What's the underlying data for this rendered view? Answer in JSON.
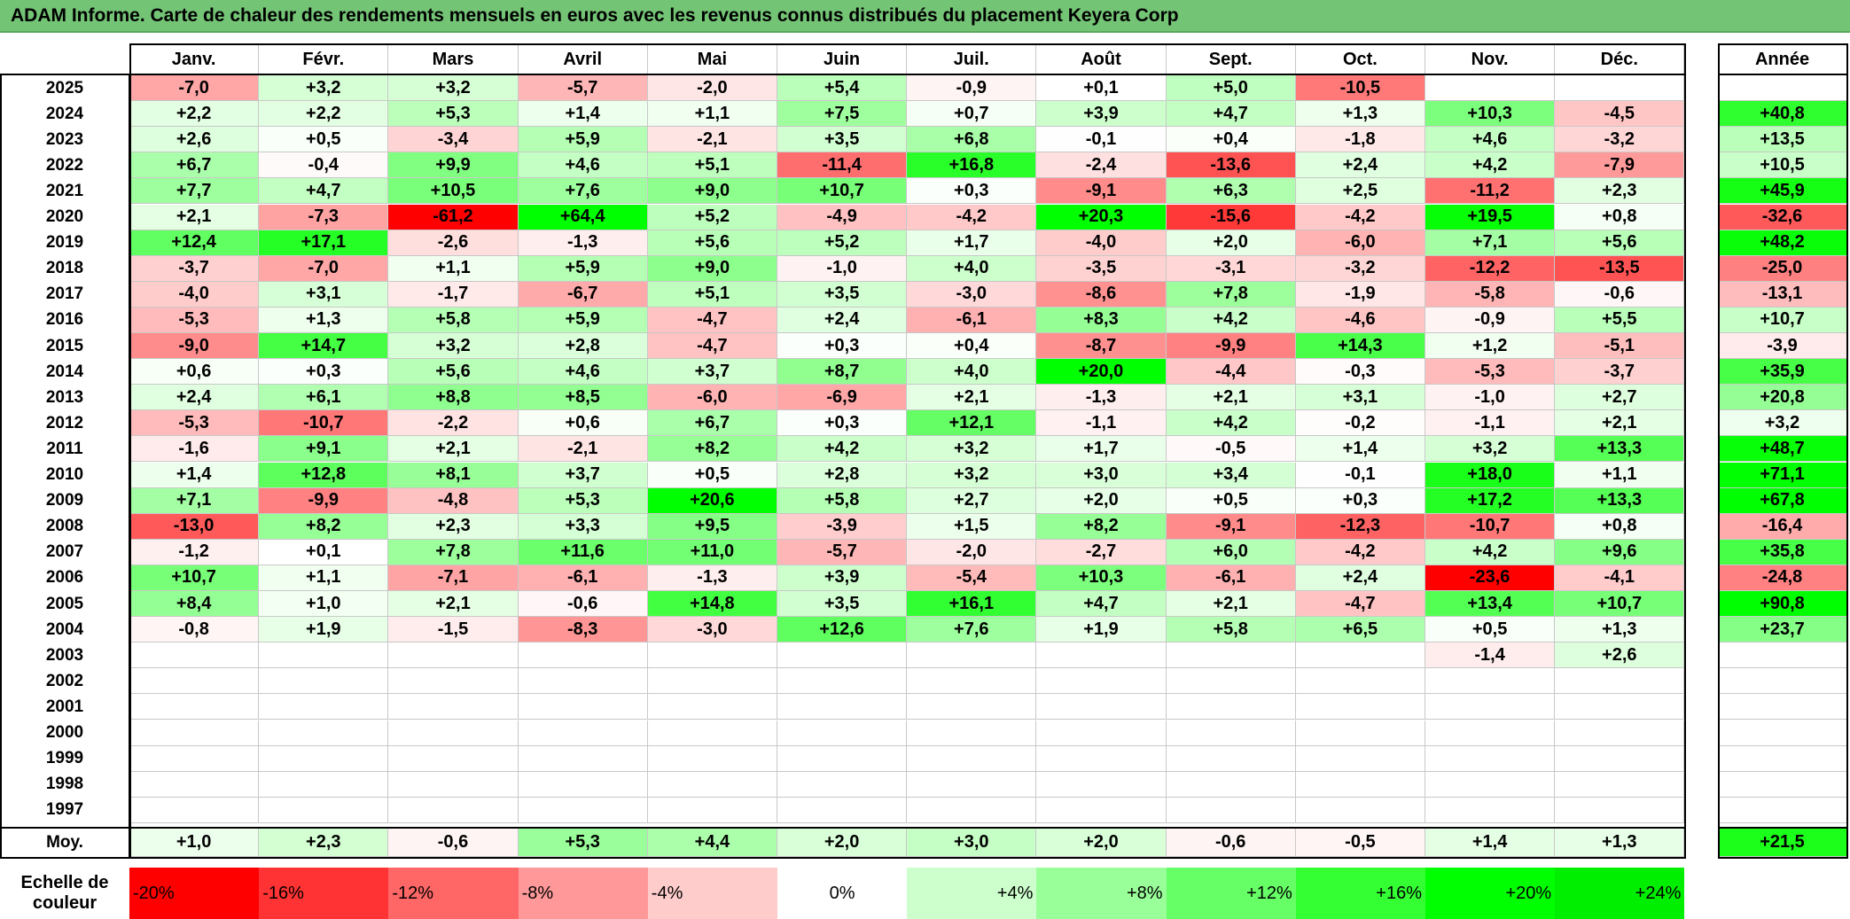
{
  "title": "ADAM Informe. Carte de chaleur des rendements mensuels en euros avec les revenus connus distribués du placement Keyera Corp",
  "chart_data": {
    "type": "heatmap",
    "title": "ADAM Informe. Carte de chaleur des rendements mensuels en euros avec les revenus connus distribués du placement Keyera Corp",
    "months": [
      "Janv.",
      "Févr.",
      "Mars",
      "Avril",
      "Mai",
      "Juin",
      "Juil.",
      "Août",
      "Sept.",
      "Oct.",
      "Nov.",
      "Déc."
    ],
    "year_header": "Année",
    "rows": [
      {
        "year": "2025",
        "values": [
          "-7,0",
          "+3,2",
          "+3,2",
          "-5,7",
          "-2,0",
          "+5,4",
          "-0,9",
          "+0,1",
          "+5,0",
          "-10,5",
          "",
          ""
        ],
        "annual": ""
      },
      {
        "year": "2024",
        "values": [
          "+2,2",
          "+2,2",
          "+5,3",
          "+1,4",
          "+1,1",
          "+7,5",
          "+0,7",
          "+3,9",
          "+4,7",
          "+1,3",
          "+10,3",
          "-4,5"
        ],
        "annual": "+40,8"
      },
      {
        "year": "2023",
        "values": [
          "+2,6",
          "+0,5",
          "-3,4",
          "+5,9",
          "-2,1",
          "+3,5",
          "+6,8",
          "-0,1",
          "+0,4",
          "-1,8",
          "+4,6",
          "-3,2"
        ],
        "annual": "+13,5"
      },
      {
        "year": "2022",
        "values": [
          "+6,7",
          "-0,4",
          "+9,9",
          "+4,6",
          "+5,1",
          "-11,4",
          "+16,8",
          "-2,4",
          "-13,6",
          "+2,4",
          "+4,2",
          "-7,9"
        ],
        "annual": "+10,5"
      },
      {
        "year": "2021",
        "values": [
          "+7,7",
          "+4,7",
          "+10,5",
          "+7,6",
          "+9,0",
          "+10,7",
          "+0,3",
          "-9,1",
          "+6,3",
          "+2,5",
          "-11,2",
          "+2,3"
        ],
        "annual": "+45,9"
      },
      {
        "year": "2020",
        "values": [
          "+2,1",
          "-7,3",
          "-61,2",
          "+64,4",
          "+5,2",
          "-4,9",
          "-4,2",
          "+20,3",
          "-15,6",
          "-4,2",
          "+19,5",
          "+0,8"
        ],
        "annual": "-32,6"
      },
      {
        "year": "2019",
        "values": [
          "+12,4",
          "+17,1",
          "-2,6",
          "-1,3",
          "+5,6",
          "+5,2",
          "+1,7",
          "-4,0",
          "+2,0",
          "-6,0",
          "+7,1",
          "+5,6"
        ],
        "annual": "+48,2"
      },
      {
        "year": "2018",
        "values": [
          "-3,7",
          "-7,0",
          "+1,1",
          "+5,9",
          "+9,0",
          "-1,0",
          "+4,0",
          "-3,5",
          "-3,1",
          "-3,2",
          "-12,2",
          "-13,5"
        ],
        "annual": "-25,0"
      },
      {
        "year": "2017",
        "values": [
          "-4,0",
          "+3,1",
          "-1,7",
          "-6,7",
          "+5,1",
          "+3,5",
          "-3,0",
          "-8,6",
          "+7,8",
          "-1,9",
          "-5,8",
          "-0,6"
        ],
        "annual": "-13,1"
      },
      {
        "year": "2016",
        "values": [
          "-5,3",
          "+1,3",
          "+5,8",
          "+5,9",
          "-4,7",
          "+2,4",
          "-6,1",
          "+8,3",
          "+4,2",
          "-4,6",
          "-0,9",
          "+5,5"
        ],
        "annual": "+10,7"
      },
      {
        "year": "2015",
        "values": [
          "-9,0",
          "+14,7",
          "+3,2",
          "+2,8",
          "-4,7",
          "+0,3",
          "+0,4",
          "-8,7",
          "-9,9",
          "+14,3",
          "+1,2",
          "-5,1"
        ],
        "annual": "-3,9"
      },
      {
        "year": "2014",
        "values": [
          "+0,6",
          "+0,3",
          "+5,6",
          "+4,6",
          "+3,7",
          "+8,7",
          "+4,0",
          "+20,0",
          "-4,4",
          "-0,3",
          "-5,3",
          "-3,7"
        ],
        "annual": "+35,9"
      },
      {
        "year": "2013",
        "values": [
          "+2,4",
          "+6,1",
          "+8,8",
          "+8,5",
          "-6,0",
          "-6,9",
          "+2,1",
          "-1,3",
          "+2,1",
          "+3,1",
          "-1,0",
          "+2,7"
        ],
        "annual": "+20,8"
      },
      {
        "year": "2012",
        "values": [
          "-5,3",
          "-10,7",
          "-2,2",
          "+0,6",
          "+6,7",
          "+0,3",
          "+12,1",
          "-1,1",
          "+4,2",
          "-0,2",
          "-1,1",
          "+2,1"
        ],
        "annual": "+3,2"
      },
      {
        "year": "2011",
        "values": [
          "-1,6",
          "+9,1",
          "+2,1",
          "-2,1",
          "+8,2",
          "+4,2",
          "+3,2",
          "+1,7",
          "-0,5",
          "+1,4",
          "+3,2",
          "+13,3"
        ],
        "annual": "+48,7"
      },
      {
        "year": "2010",
        "values": [
          "+1,4",
          "+12,8",
          "+8,1",
          "+3,7",
          "+0,5",
          "+2,8",
          "+3,2",
          "+3,0",
          "+3,4",
          "-0,1",
          "+18,0",
          "+1,1"
        ],
        "annual": "+71,1"
      },
      {
        "year": "2009",
        "values": [
          "+7,1",
          "-9,9",
          "-4,8",
          "+5,3",
          "+20,6",
          "+5,8",
          "+2,7",
          "+2,0",
          "+0,5",
          "+0,3",
          "+17,2",
          "+13,3"
        ],
        "annual": "+67,8"
      },
      {
        "year": "2008",
        "values": [
          "-13,0",
          "+8,2",
          "+2,3",
          "+3,3",
          "+9,5",
          "-3,9",
          "+1,5",
          "+8,2",
          "-9,1",
          "-12,3",
          "-10,7",
          "+0,8"
        ],
        "annual": "-16,4"
      },
      {
        "year": "2007",
        "values": [
          "-1,2",
          "+0,1",
          "+7,8",
          "+11,6",
          "+11,0",
          "-5,7",
          "-2,0",
          "-2,7",
          "+6,0",
          "-4,2",
          "+4,2",
          "+9,6"
        ],
        "annual": "+35,8"
      },
      {
        "year": "2006",
        "values": [
          "+10,7",
          "+1,1",
          "-7,1",
          "-6,1",
          "-1,3",
          "+3,9",
          "-5,4",
          "+10,3",
          "-6,1",
          "+2,4",
          "-23,6",
          "-4,1"
        ],
        "annual": "-24,8"
      },
      {
        "year": "2005",
        "values": [
          "+8,4",
          "+1,0",
          "+2,1",
          "-0,6",
          "+14,8",
          "+3,5",
          "+16,1",
          "+4,7",
          "+2,1",
          "-4,7",
          "+13,4",
          "+10,7"
        ],
        "annual": "+90,8"
      },
      {
        "year": "2004",
        "values": [
          "-0,8",
          "+1,9",
          "-1,5",
          "-8,3",
          "-3,0",
          "+12,6",
          "+7,6",
          "+1,9",
          "+5,8",
          "+6,5",
          "+0,5",
          "+1,3"
        ],
        "annual": "+23,7"
      },
      {
        "year": "2003",
        "values": [
          "",
          "",
          "",
          "",
          "",
          "",
          "",
          "",
          "",
          "",
          "-1,4",
          "+2,6"
        ],
        "annual": ""
      },
      {
        "year": "2002",
        "values": [
          "",
          "",
          "",
          "",
          "",
          "",
          "",
          "",
          "",
          "",
          "",
          ""
        ],
        "annual": ""
      },
      {
        "year": "2001",
        "values": [
          "",
          "",
          "",
          "",
          "",
          "",
          "",
          "",
          "",
          "",
          "",
          ""
        ],
        "annual": ""
      },
      {
        "year": "2000",
        "values": [
          "",
          "",
          "",
          "",
          "",
          "",
          "",
          "",
          "",
          "",
          "",
          ""
        ],
        "annual": ""
      },
      {
        "year": "1999",
        "values": [
          "",
          "",
          "",
          "",
          "",
          "",
          "",
          "",
          "",
          "",
          "",
          ""
        ],
        "annual": ""
      },
      {
        "year": "1998",
        "values": [
          "",
          "",
          "",
          "",
          "",
          "",
          "",
          "",
          "",
          "",
          "",
          ""
        ],
        "annual": ""
      },
      {
        "year": "1997",
        "values": [
          "",
          "",
          "",
          "",
          "",
          "",
          "",
          "",
          "",
          "",
          "",
          ""
        ],
        "annual": ""
      }
    ],
    "average": {
      "label": "Moy.",
      "values": [
        "+1,0",
        "+2,3",
        "-0,6",
        "+5,3",
        "+4,4",
        "+2,0",
        "+3,0",
        "+2,0",
        "-0,6",
        "-0,5",
        "+1,4",
        "+1,3"
      ],
      "annual": "+21,5"
    },
    "color_scale": {
      "label_line1": "Echelle de",
      "label_line2": "couleur",
      "stops": [
        {
          "label": "-20%",
          "value": -20,
          "color": "#ff0000"
        },
        {
          "label": "-16%",
          "value": -16,
          "color": "#ff3333"
        },
        {
          "label": "-12%",
          "value": -12,
          "color": "#ff6666"
        },
        {
          "label": "-8%",
          "value": -8,
          "color": "#ff9999"
        },
        {
          "label": "-4%",
          "value": -4,
          "color": "#ffcccc"
        },
        {
          "label": "0%",
          "value": 0,
          "color": "#ffffff"
        },
        {
          "label": "+4%",
          "value": 4,
          "color": "#ccffcc"
        },
        {
          "label": "+8%",
          "value": 8,
          "color": "#99ff99"
        },
        {
          "label": "+12%",
          "value": 12,
          "color": "#66ff66"
        },
        {
          "label": "+16%",
          "value": 16,
          "color": "#33ff33"
        },
        {
          "label": "+20%",
          "value": 20,
          "color": "#00ff00"
        },
        {
          "label": "+24%",
          "value": 24,
          "color": "#00ee00"
        }
      ]
    }
  }
}
